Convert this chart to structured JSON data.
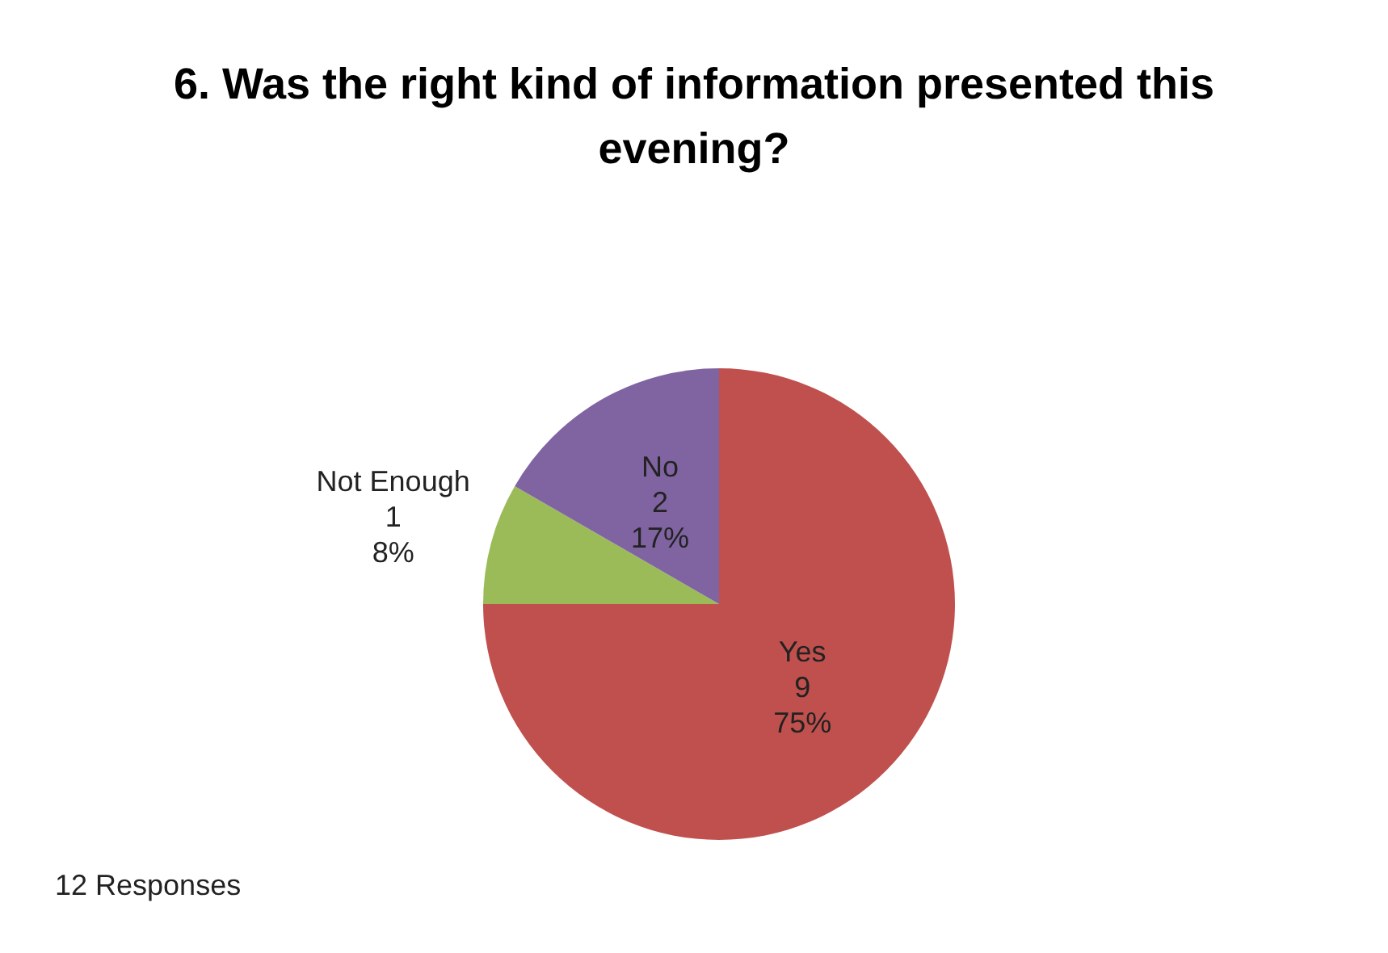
{
  "chart_data": {
    "type": "pie",
    "title": "6. Was the right kind of information presented this evening?",
    "categories": [
      "Yes",
      "Not Enough",
      "No"
    ],
    "values": [
      9,
      1,
      2
    ],
    "colors": [
      "#c0504d",
      "#9bbb59",
      "#8064a2"
    ],
    "value_labels": [
      "9\n75%",
      "1\n8%",
      "2\n17%"
    ],
    "annotations": [
      "12 Responses"
    ],
    "legend": false
  }
}
